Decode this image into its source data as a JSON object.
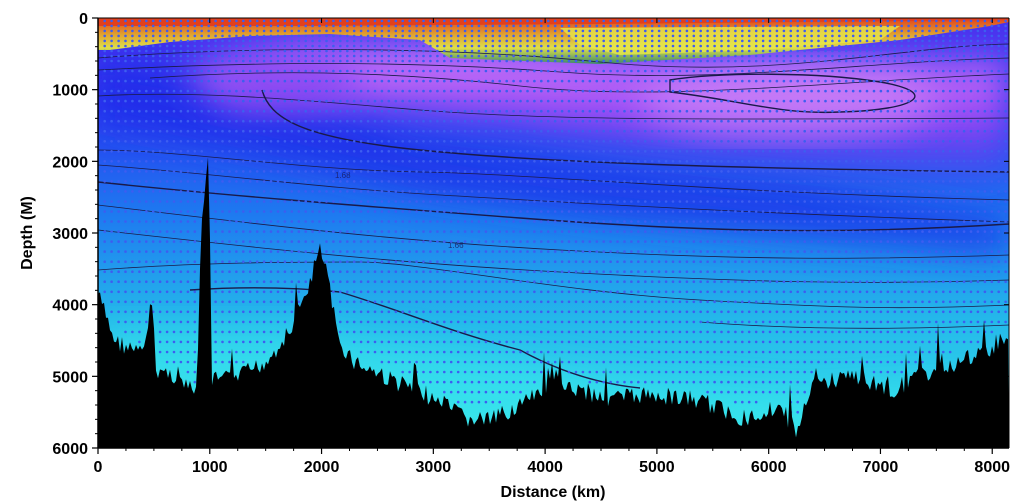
{
  "chart_data": {
    "type": "heatmap",
    "title": "",
    "xlabel": "Distance (km)",
    "ylabel": "Depth (M)",
    "xlim": [
      0,
      8150
    ],
    "ylim": [
      6000,
      0
    ],
    "x_ticks": [
      0,
      1000,
      2000,
      3000,
      4000,
      5000,
      6000,
      7000,
      8000
    ],
    "y_ticks": [
      0,
      1000,
      2000,
      3000,
      4000,
      5000,
      6000
    ],
    "contour_labels": [
      "1.68",
      "1.66"
    ],
    "colormap": [
      "#36e8ec",
      "#26c8e8",
      "#1a8cf0",
      "#1e3ef0",
      "#3a20e8",
      "#8f3ff2",
      "#cf6df8",
      "#dede4a",
      "#e0a030",
      "#e2401c"
    ],
    "bathymetry_color": "#000000",
    "station_marker_color": "#3d5ef0",
    "contour_line_color": "#1a1a4a",
    "grid": false,
    "legend": "none"
  }
}
